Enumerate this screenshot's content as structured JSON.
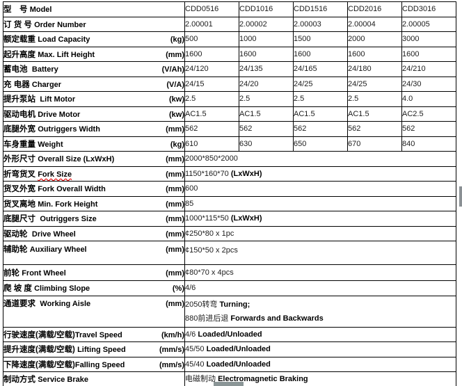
{
  "colors": {
    "background": "#ffffff",
    "table_border": "#000000",
    "label_text": "#000000",
    "value_text": "#1c1c1c",
    "bold_value_text": "#000000",
    "spellcheck_underline": "#e00000",
    "scrollbar_thumb": "#8a9596"
  },
  "rows": [
    {
      "zh": "型　号 ",
      "en": "Model",
      "unit": "",
      "values": [
        "CDD0516",
        "CDD1016",
        "CDD1516",
        "CDD2016",
        "CDD3016"
      ]
    },
    {
      "zh": "订 货 号 ",
      "en": "Order Number",
      "unit": "",
      "values": [
        "2.00001",
        "2.00002",
        "2.00003",
        "2.00004",
        "2.00005"
      ]
    },
    {
      "zh": "额定载重 ",
      "en": "Load Capacity",
      "unit": "(kg)",
      "values": [
        "500",
        "1000",
        "1500",
        "2000",
        "3000"
      ]
    },
    {
      "zh": "起升高度 ",
      "en": "Max. Lift Height",
      "unit": "(mm)",
      "values": [
        "1600",
        "1600",
        "1600",
        "1600",
        "1600"
      ]
    },
    {
      "zh": "蓄电池  ",
      "en": "Battery",
      "unit": "(V/Ah)",
      "values": [
        "24/120",
        "24/135",
        "24/165",
        "24/180",
        "24/210"
      ]
    },
    {
      "zh": "充 电器 ",
      "en": "Charger",
      "unit": "(V/A)",
      "values": [
        "24/15",
        "24/20",
        "24/25",
        "24/25",
        "24/30"
      ]
    },
    {
      "zh": "提升泵站  ",
      "en": "Lift Motor",
      "unit": "(kw)",
      "values": [
        "2.5",
        "2.5",
        "2.5",
        "2.5",
        "4.0"
      ]
    },
    {
      "zh": "驱动电机 ",
      "en": "Drive Motor",
      "unit": "(kw)",
      "values": [
        "AC1.5",
        "AC1.5",
        "AC1.5",
        "AC1.5",
        "AC2.5"
      ]
    },
    {
      "zh": "底腿外宽 ",
      "en": "Outriggers Width",
      "unit": "(mm)",
      "values": [
        "562",
        "562",
        "562",
        "562",
        "562"
      ]
    },
    {
      "zh": "车身重量 ",
      "en": "Weight",
      "unit": "(kg)",
      "values": [
        "610",
        "630",
        "650",
        "670",
        "840"
      ]
    },
    {
      "zh": "外形尺寸 ",
      "en": "Overall Size (LxWxH)",
      "unit": "(mm)",
      "lines": [
        [
          {
            "t": "2000*850*2000",
            "b": false
          }
        ]
      ]
    },
    {
      "zh": "折弯货叉 ",
      "en": "Fork Size",
      "unit": "(mm)",
      "misspell": true,
      "lines": [
        [
          {
            "t": "1150*160*70 ",
            "b": false
          },
          {
            "t": "(LxWxH)",
            "b": true
          }
        ]
      ]
    },
    {
      "zh": "货叉外宽 ",
      "en": "Fork Overall Width",
      "unit": "(mm)",
      "lines": [
        [
          {
            "t": "600",
            "b": false
          }
        ]
      ]
    },
    {
      "zh": "货叉离地 ",
      "en": "Min. Fork Height",
      "unit": "(mm)",
      "lines": [
        [
          {
            "t": "85",
            "b": false
          }
        ]
      ]
    },
    {
      "zh": "底腿尺寸  ",
      "en": "Outriggers Size",
      "unit": "(mm)",
      "lines": [
        [
          {
            "t": "1000*115*50 ",
            "b": false
          },
          {
            "t": "(LxWxH)",
            "b": true
          }
        ]
      ]
    },
    {
      "zh": "驱动轮  ",
      "en": "Drive Wheel",
      "unit": "(mm)",
      "lines": [
        [
          {
            "t": "¢250*80 x 1pc",
            "b": false
          }
        ]
      ]
    },
    {
      "zh": "辅助轮 ",
      "en": "Auxiliary Wheel",
      "unit": "(mm)",
      "lines": [
        [
          {
            "t": "¢150*50 x 2pcs",
            "b": false
          }
        ]
      ]
    },
    {
      "zh": "前轮 ",
      "en": "Front Wheel",
      "unit": "(mm)",
      "lines": [
        [
          {
            "t": "¢80*70 x 4pcs",
            "b": false
          }
        ]
      ]
    },
    {
      "zh": "爬 坡 度 ",
      "en": "Climbing Slope",
      "unit": "(%)",
      "lines": [
        [
          {
            "t": "4/6",
            "b": false
          }
        ]
      ]
    },
    {
      "zh": "通道要求  ",
      "en": "Working Aisle",
      "unit": "(mm)",
      "lines": [
        [
          {
            "t": "2050转弯 ",
            "b": false
          },
          {
            "t": "Turning;",
            "b": true
          }
        ],
        [
          {
            "t": "880前进后退 ",
            "b": false
          },
          {
            "t": "Forwards and Backwards",
            "b": true
          }
        ]
      ]
    },
    {
      "zh": "行驶速度(满载/空载)",
      "en": "Travel Speed",
      "unit": "(km/h)",
      "lines": [
        [
          {
            "t": "4/6 ",
            "b": false
          },
          {
            "t": "Loaded/Unloaded",
            "b": true
          }
        ]
      ]
    },
    {
      "zh": "提升速度(满载/空载) ",
      "en": "Lifting Speed",
      "unit": "(mm/s)",
      "lines": [
        [
          {
            "t": "45/50 ",
            "b": false
          },
          {
            "t": "Loaded/Unloaded",
            "b": true
          }
        ]
      ]
    },
    {
      "zh": "下降速度(满载/空载)",
      "en": "Falling Speed",
      "unit": "(mm/s)",
      "lines": [
        [
          {
            "t": "45/40 ",
            "b": false
          },
          {
            "t": "Loaded/Unloaded",
            "b": true
          }
        ]
      ]
    },
    {
      "zh": "制动方式 ",
      "en": "Service Brake",
      "unit": "",
      "lines": [
        [
          {
            "t": "电磁制动 ",
            "b": false
          },
          {
            "t": "Electromagnetic Braking",
            "b": true
          }
        ]
      ]
    }
  ]
}
